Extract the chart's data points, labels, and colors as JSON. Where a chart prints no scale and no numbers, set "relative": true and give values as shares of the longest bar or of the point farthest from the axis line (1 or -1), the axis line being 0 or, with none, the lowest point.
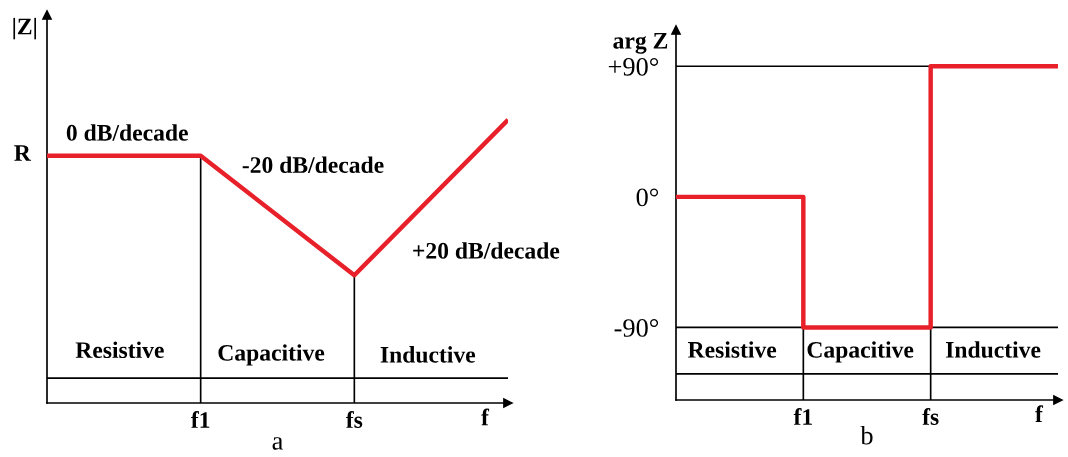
{
  "chart_data": [
    {
      "type": "line",
      "title": "a",
      "xlabel": "f",
      "ylabel": "|Z|",
      "relative": true,
      "tick_labels": "x",
      "categories": [
        null,
        "f1",
        "fs",
        null
      ],
      "series": [
        {
          "color": "#e8202a",
          "values": [
            0.873,
            0.873,
            0.451,
            1
          ]
        }
      ],
      "ref_lines": [
        {
          "axis": "x",
          "value": "f1"
        },
        {
          "axis": "x",
          "value": "fs"
        },
        {
          "axis": "y",
          "value": 0.088
        }
      ],
      "annotations": [
        "R",
        "0 dB/decade",
        "-20 dB/decade",
        "+20 dB/decade",
        "Resistive",
        "Capacitive",
        "Inductive"
      ],
      "marker": "none",
      "line_style": "solid"
    },
    {
      "type": "step",
      "title": "b",
      "xlabel": "f",
      "ylabel": "arg Z",
      "categories": [
        null,
        "f1",
        "fs",
        null
      ],
      "series": [
        {
          "color": "#e8202a",
          "values": [
            0,
            -90,
            90,
            90
          ]
        }
      ],
      "ylim": [
        -140,
        115
      ],
      "yticks": [
        {
          "value": 90,
          "label": "+90°"
        },
        {
          "value": 0,
          "label": "0°"
        },
        {
          "value": -90,
          "label": "-90°"
        }
      ],
      "ref_lines": [
        {
          "axis": "x",
          "value": "f1"
        },
        {
          "axis": "x",
          "value": "fs"
        },
        {
          "axis": "y",
          "value": 90
        },
        {
          "axis": "y",
          "value": -90
        },
        {
          "axis": "y",
          "value": -122
        }
      ],
      "annotations": [
        "Resistive",
        "Capacitive",
        "Inductive"
      ],
      "marker": "none",
      "line_style": "solid"
    }
  ]
}
